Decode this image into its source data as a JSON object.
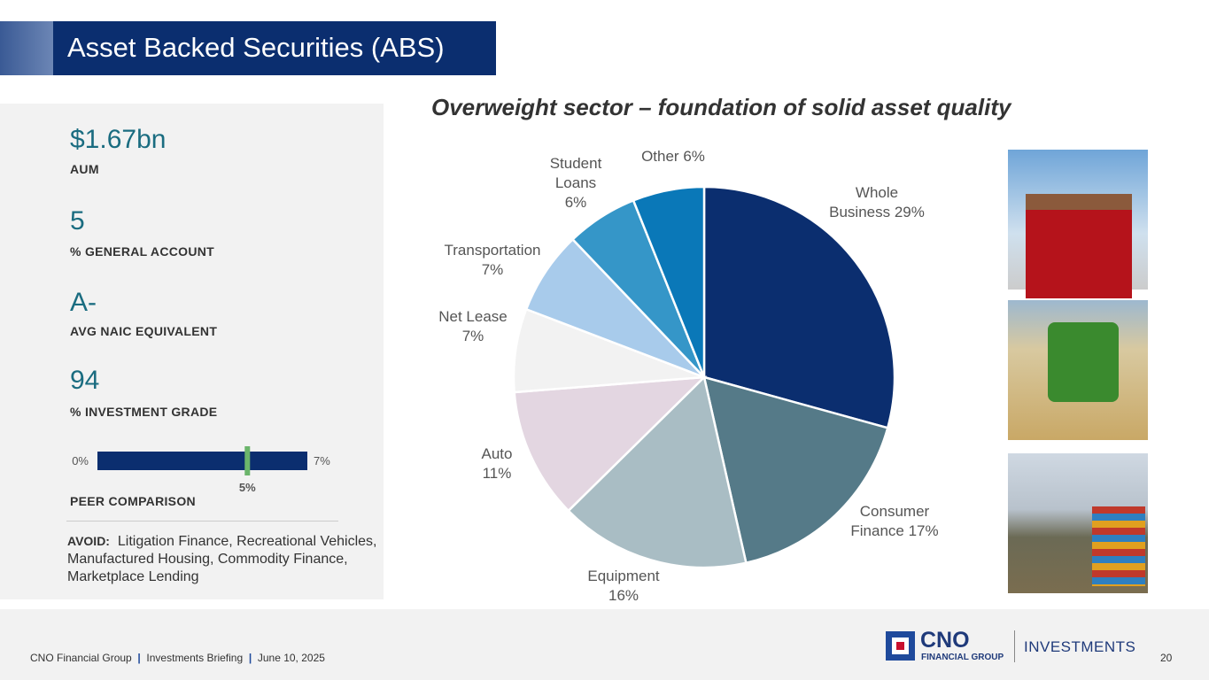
{
  "title": "Asset Backed Securities (ABS)",
  "metrics": [
    {
      "value": "$1.67bn",
      "label": "AUM"
    },
    {
      "value": "5",
      "label": "% GENERAL ACCOUNT"
    },
    {
      "value": "A-",
      "label": "AVG NAIC EQUIVALENT"
    },
    {
      "value": "94",
      "label": "% INVESTMENT GRADE"
    }
  ],
  "peer_comparison": {
    "label": "PEER COMPARISON",
    "xlim": [
      0,
      7
    ],
    "xticks": [
      {
        "value": 0,
        "label": "0%"
      },
      {
        "value": 7,
        "label": "7%"
      }
    ],
    "value": 5,
    "value_label": "5%"
  },
  "avoid": {
    "label": "AVOID:",
    "text": "Litigation Finance, Recreational Vehicles, Manufactured Housing, Commodity Finance, Marketplace Lending"
  },
  "chart_data": {
    "type": "pie",
    "title": "Overweight sector – foundation of solid asset quality",
    "categories": [
      "Whole Business",
      "Consumer Finance",
      "Equipment",
      "Auto",
      "Net Lease",
      "Transportation",
      "Student Loans",
      "Other"
    ],
    "values": [
      29,
      17,
      16,
      11,
      7,
      7,
      6,
      6
    ],
    "value_labels": [
      "29%",
      "17%",
      "16%",
      "11%",
      "7%",
      "7%",
      "6%",
      "6%"
    ],
    "colors": [
      "#0b2e6f",
      "#557a88",
      "#a9bdc4",
      "#e3d6e1",
      "#f2f2f2",
      "#a8cbeb",
      "#3596c8",
      "#0a78b8"
    ]
  },
  "footer": {
    "parts": [
      "CNO Financial Group",
      "Investments Briefing",
      "June 10, 2025"
    ],
    "separator": "|",
    "page": "20"
  },
  "logo": {
    "name": "CNO",
    "sub": "FINANCIAL GROUP",
    "division": "INVESTMENTS"
  }
}
